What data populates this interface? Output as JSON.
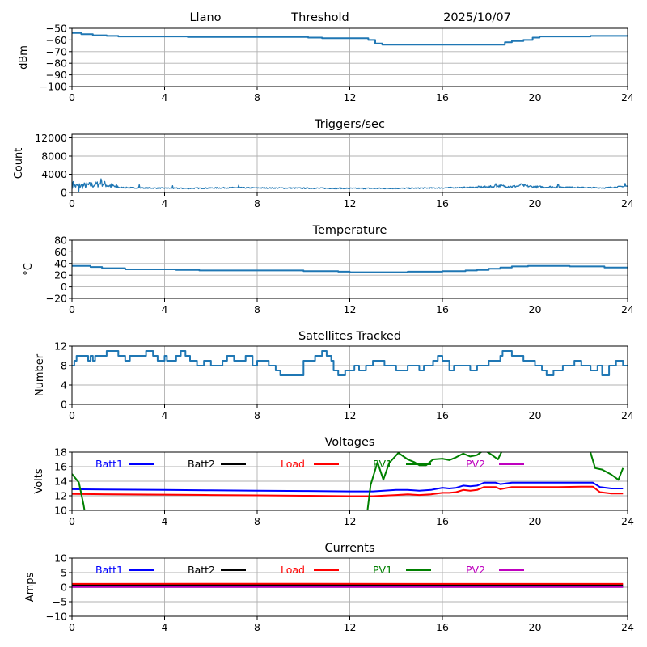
{
  "figure_header": {
    "site": "Llano",
    "mode": "Threshold",
    "date": "2025/10/07"
  },
  "chart_data": [
    {
      "id": "threshold",
      "type": "line",
      "title": "",
      "xlabel": "",
      "ylabel": "dBm",
      "xlim": [
        0,
        24
      ],
      "ylim": [
        -100,
        -50
      ],
      "xticks": [
        0,
        4,
        8,
        12,
        16,
        20,
        24
      ],
      "yticks": [
        -100,
        -90,
        -80,
        -70,
        -60,
        -50
      ],
      "ytick_labels": [
        "−100",
        "−90",
        "−80",
        "−70",
        "−60",
        "−50"
      ],
      "grid": true,
      "series": [
        {
          "name": "Threshold",
          "color": "#1f77b4",
          "step": true,
          "x": [
            0,
            0.2,
            0.4,
            0.6,
            0.9,
            1.2,
            1.5,
            2.0,
            5.0,
            8.0,
            10.2,
            10.8,
            12.5,
            12.8,
            13.1,
            13.4,
            16.0,
            18.4,
            18.7,
            19.0,
            19.5,
            19.9,
            20.2,
            22.4,
            24
          ],
          "y": [
            -54,
            -54,
            -55,
            -55,
            -56,
            -56,
            -56.5,
            -57,
            -57.5,
            -57.5,
            -58,
            -58.5,
            -58.5,
            -60,
            -63,
            -64,
            -64,
            -64,
            -62,
            -61,
            -60,
            -58,
            -57,
            -56.5,
            -56.5
          ]
        }
      ]
    },
    {
      "id": "triggers",
      "type": "line",
      "title": "Triggers/sec",
      "xlabel": "",
      "ylabel": "Count",
      "xlim": [
        0,
        24
      ],
      "ylim": [
        0,
        12800
      ],
      "xticks": [
        0,
        4,
        8,
        12,
        16,
        20,
        24
      ],
      "yticks": [
        0,
        4000,
        8000,
        12000
      ],
      "ytick_labels": [
        "0",
        "4000",
        "8000",
        "12000"
      ],
      "grid": true,
      "series": [
        {
          "name": "Triggers",
          "color": "#1f77b4",
          "noisy": true,
          "x": [
            0,
            0.5,
            1.0,
            1.3,
            1.7,
            2.0,
            3.0,
            4.0,
            5.0,
            7.0,
            8.0,
            10.0,
            12.0,
            14.0,
            16.0,
            17.0,
            18.0,
            18.5,
            19.0,
            19.5,
            20.0,
            21.0,
            22.0,
            23.0,
            23.7,
            24
          ],
          "y": [
            1400,
            1500,
            1700,
            2000,
            1400,
            1100,
            1000,
            950,
            900,
            1050,
            1000,
            950,
            900,
            900,
            1000,
            1100,
            1200,
            1450,
            1300,
            1500,
            1200,
            1200,
            1100,
            1000,
            1300,
            1400
          ],
          "spikes": [
            [
              0.05,
              2400
            ],
            [
              0.3,
              200
            ],
            [
              1.25,
              3000
            ],
            [
              2.9,
              1700
            ],
            [
              4.35,
              1500
            ],
            [
              7.2,
              1600
            ],
            [
              18.3,
              1900
            ],
            [
              19.4,
              1900
            ],
            [
              21.0,
              1800
            ],
            [
              23.9,
              2000
            ]
          ]
        }
      ]
    },
    {
      "id": "temperature",
      "type": "line",
      "title": "Temperature",
      "xlabel": "",
      "ylabel": "°C",
      "xlim": [
        0,
        24
      ],
      "ylim": [
        -20,
        80
      ],
      "xticks": [
        0,
        4,
        8,
        12,
        16,
        20,
        24
      ],
      "yticks": [
        -20,
        0,
        20,
        40,
        60,
        80
      ],
      "ytick_labels": [
        "−20",
        "0",
        "20",
        "40",
        "60",
        "80"
      ],
      "grid": true,
      "series": [
        {
          "name": "Temperature",
          "color": "#1f77b4",
          "step": true,
          "x": [
            0,
            0.8,
            1.3,
            2.3,
            4.5,
            5.5,
            7.5,
            8.0,
            10.0,
            11.5,
            12.0,
            14.0,
            14.5,
            16.0,
            17.0,
            17.5,
            18.0,
            18.5,
            19.0,
            19.7,
            21.0,
            21.5,
            23.0,
            24
          ],
          "y": [
            36,
            34,
            32,
            30,
            29,
            28,
            28,
            28,
            27,
            26,
            25,
            25,
            26,
            27,
            28,
            29,
            31,
            33,
            35,
            36,
            36,
            35,
            33,
            33
          ]
        }
      ]
    },
    {
      "id": "satellites",
      "type": "line",
      "title": "Satellites Tracked",
      "xlabel": "",
      "ylabel": "Number",
      "xlim": [
        0,
        24
      ],
      "ylim": [
        0,
        12
      ],
      "xticks": [
        0,
        4,
        8,
        12,
        16,
        20,
        24
      ],
      "yticks": [
        0,
        4,
        8,
        12
      ],
      "ytick_labels": [
        "0",
        "4",
        "8",
        "12"
      ],
      "grid": true,
      "series": [
        {
          "name": "Satellites",
          "color": "#1f77b4",
          "step": true,
          "x": [
            0,
            0.1,
            0.2,
            0.3,
            0.7,
            0.8,
            0.9,
            1.0,
            1.4,
            1.5,
            2.0,
            2.3,
            2.5,
            3.0,
            3.2,
            3.5,
            3.7,
            4.0,
            4.1,
            4.3,
            4.5,
            4.7,
            4.9,
            5.1,
            5.4,
            5.7,
            6.0,
            6.5,
            6.7,
            7.0,
            7.5,
            7.8,
            8.0,
            8.5,
            8.8,
            9.0,
            9.3,
            10.0,
            10.5,
            10.8,
            11.0,
            11.2,
            11.3,
            11.5,
            11.8,
            12.2,
            12.4,
            12.7,
            13.0,
            13.5,
            14.0,
            14.5,
            15.0,
            15.2,
            15.6,
            15.8,
            16.0,
            16.3,
            16.5,
            17.2,
            17.5,
            18.0,
            18.5,
            18.6,
            19.0,
            19.5,
            20.0,
            20.3,
            20.5,
            20.8,
            21.2,
            21.7,
            22.0,
            22.4,
            22.7,
            22.9,
            23.2,
            23.5,
            23.8,
            24
          ],
          "y": [
            8,
            9,
            10,
            10,
            9,
            10,
            9,
            10,
            10,
            11,
            10,
            9,
            10,
            10,
            11,
            10,
            9,
            10,
            9,
            9,
            10,
            11,
            10,
            9,
            8,
            9,
            8,
            9,
            10,
            9,
            10,
            8,
            9,
            8,
            7,
            6,
            6,
            9,
            10,
            11,
            10,
            9,
            7,
            6,
            7,
            8,
            7,
            8,
            9,
            8,
            7,
            8,
            7,
            8,
            9,
            10,
            9,
            7,
            8,
            7,
            8,
            9,
            10,
            11,
            10,
            9,
            8,
            7,
            6,
            7,
            8,
            9,
            8,
            7,
            8,
            6,
            8,
            9,
            8,
            8
          ]
        }
      ]
    },
    {
      "id": "voltages",
      "type": "line",
      "title": "Voltages",
      "xlabel": "",
      "ylabel": "Volts",
      "xlim": [
        0,
        24
      ],
      "ylim": [
        10,
        18
      ],
      "xticks": [
        0,
        4,
        8,
        12,
        16,
        20,
        24
      ],
      "yticks": [
        10,
        12,
        14,
        16,
        18
      ],
      "ytick_labels": [
        "10",
        "12",
        "14",
        "16",
        "18"
      ],
      "grid": true,
      "legend": {
        "placement": "upper-inside",
        "orientation": "horizontal"
      },
      "series": [
        {
          "name": "Batt1",
          "color": "#0000ff",
          "x": [
            0,
            2,
            4,
            6,
            8,
            10,
            12,
            13.0,
            14.0,
            14.5,
            15.0,
            15.5,
            16.0,
            16.3,
            16.6,
            16.9,
            17.2,
            17.5,
            17.8,
            18.3,
            18.5,
            19.0,
            20.0,
            21.0,
            22.0,
            22.5,
            22.8,
            23.3,
            23.8
          ],
          "y": [
            12.9,
            12.85,
            12.8,
            12.75,
            12.7,
            12.65,
            12.6,
            12.6,
            12.8,
            12.8,
            12.7,
            12.8,
            13.1,
            13.0,
            13.1,
            13.4,
            13.3,
            13.4,
            13.8,
            13.8,
            13.6,
            13.8,
            13.8,
            13.8,
            13.8,
            13.8,
            13.2,
            13.0,
            13.0
          ]
        },
        {
          "name": "Batt2",
          "color": "#000000",
          "x": [],
          "y": []
        },
        {
          "name": "Load",
          "color": "#ff0000",
          "x": [
            0,
            2,
            4,
            6,
            8,
            10,
            12,
            13.0,
            14.0,
            14.5,
            15.0,
            15.5,
            16.0,
            16.3,
            16.6,
            16.9,
            17.2,
            17.5,
            17.8,
            18.3,
            18.5,
            19.0,
            20.0,
            21.0,
            22.0,
            22.5,
            22.8,
            23.3,
            23.8
          ],
          "y": [
            12.25,
            12.2,
            12.15,
            12.1,
            12.05,
            12.0,
            11.95,
            11.95,
            12.1,
            12.2,
            12.1,
            12.2,
            12.4,
            12.4,
            12.5,
            12.8,
            12.7,
            12.8,
            13.2,
            13.2,
            12.9,
            13.2,
            13.2,
            13.2,
            13.25,
            13.25,
            12.5,
            12.3,
            12.3
          ]
        },
        {
          "name": "PV1",
          "color": "#008000",
          "clipped": true,
          "x": [
            0,
            0.3,
            0.5,
            0.7,
            12.65,
            12.9,
            13.2,
            13.45,
            13.7,
            14.1,
            14.5,
            14.8,
            15.0,
            15.3,
            15.6,
            16.0,
            16.3,
            16.6,
            16.9,
            17.2,
            17.5,
            17.8,
            18.1,
            18.4,
            18.7,
            22.3,
            22.6,
            22.9,
            23.3,
            23.6,
            23.8
          ],
          "y": [
            15.0,
            13.8,
            10.8,
            7.0,
            7.0,
            13.5,
            16.6,
            14.2,
            16.5,
            17.9,
            17.0,
            16.6,
            16.2,
            16.2,
            17.0,
            17.1,
            16.9,
            17.3,
            17.8,
            17.4,
            17.6,
            18.3,
            17.7,
            17.0,
            19.0,
            19.0,
            15.8,
            15.6,
            14.9,
            14.2,
            15.8
          ]
        },
        {
          "name": "PV2",
          "color": "#bf00bf",
          "x": [],
          "y": []
        }
      ]
    },
    {
      "id": "currents",
      "type": "line",
      "title": "Currents",
      "xlabel": "",
      "ylabel": "Amps",
      "xlim": [
        0,
        24
      ],
      "ylim": [
        -10,
        10
      ],
      "xticks": [
        0,
        4,
        8,
        12,
        16,
        20,
        24
      ],
      "yticks": [
        -10,
        -5,
        0,
        5,
        10
      ],
      "ytick_labels": [
        "−10",
        "−5",
        "0",
        "5",
        "10"
      ],
      "grid": true,
      "legend": {
        "placement": "upper-inside",
        "orientation": "horizontal"
      },
      "series": [
        {
          "name": "Batt1",
          "color": "#0000ff",
          "x": [
            0,
            23.8
          ],
          "y": [
            0.2,
            0.2
          ]
        },
        {
          "name": "Batt2",
          "color": "#000000",
          "x": [
            0,
            23.8
          ],
          "y": [
            0.7,
            0.7
          ]
        },
        {
          "name": "Load",
          "color": "#ff0000",
          "x": [
            0,
            8,
            16,
            23.8
          ],
          "y": [
            1.15,
            1.2,
            1.15,
            1.15
          ]
        },
        {
          "name": "PV1",
          "color": "#008000",
          "x": [
            0,
            23.8
          ],
          "y": [
            0.1,
            0.1
          ]
        },
        {
          "name": "PV2",
          "color": "#bf00bf",
          "x": [
            0,
            23.8
          ],
          "y": [
            0.05,
            0.05
          ]
        }
      ]
    }
  ]
}
